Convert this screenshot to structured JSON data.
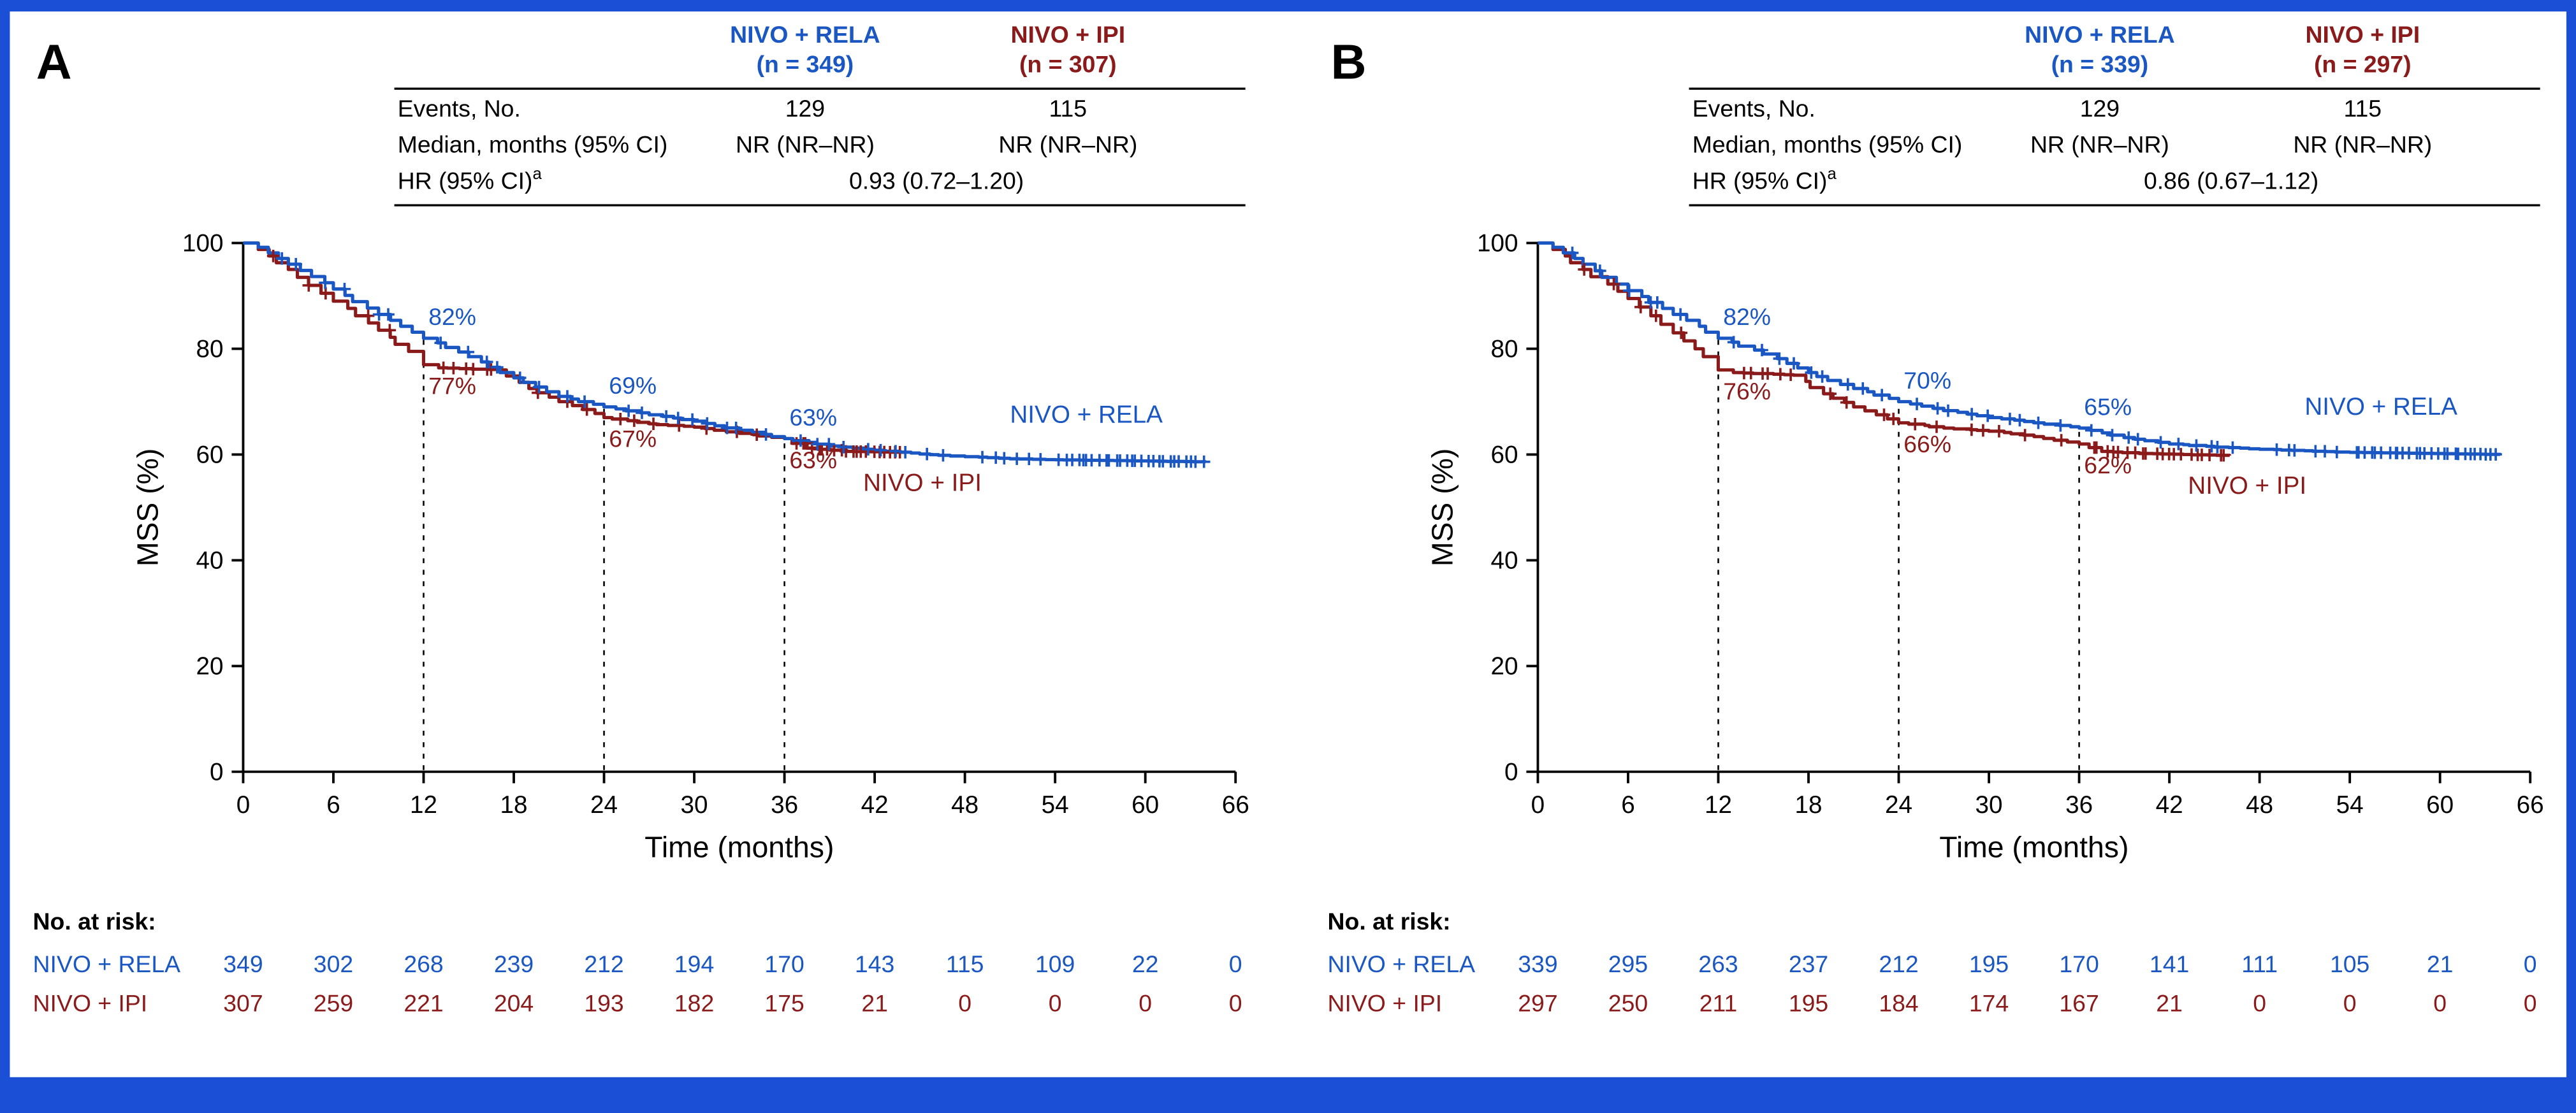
{
  "figure": {
    "frame_color": "#1b4fd6",
    "background": "#ffffff",
    "axis_color": "#000000",
    "no_at_risk_label": "No. at risk:",
    "table_row_labels": {
      "events": "Events, No.",
      "median": "Median, months (95% CI)",
      "hr": "HR (95% CI)",
      "hr_superscript": "a"
    }
  },
  "chart_data": [
    {
      "type": "line",
      "subtype": "kaplan-meier-step",
      "panel_label": "A",
      "xlabel": "Time (months)",
      "ylabel": "MSS (%)",
      "xlim": [
        0,
        66
      ],
      "ylim": [
        0,
        100
      ],
      "xticks": [
        0,
        6,
        12,
        18,
        24,
        30,
        36,
        42,
        48,
        54,
        60,
        66
      ],
      "yticks": [
        0,
        20,
        40,
        60,
        80,
        100
      ],
      "landmark_times": [
        12,
        24,
        36
      ],
      "hr_value": "0.93 (0.72–1.20)",
      "series": [
        {
          "name": "NIVO + RELA",
          "n_label": "(n = 349)",
          "color": "#1a57c2",
          "events": "129",
          "median": "NR (NR–NR)",
          "landmarks": [
            {
              "t": 12,
              "pct": 82,
              "label": "82%"
            },
            {
              "t": 24,
              "pct": 69,
              "label": "69%"
            },
            {
              "t": 36,
              "pct": 63,
              "label": "63%"
            }
          ],
          "anchors": [
            [
              0,
              100
            ],
            [
              1,
              99.2
            ],
            [
              3,
              96
            ],
            [
              6,
              91.3
            ],
            [
              9,
              86.5
            ],
            [
              12,
              82
            ],
            [
              15,
              78.5
            ],
            [
              18,
              74.5
            ],
            [
              21,
              71
            ],
            [
              24,
              69
            ],
            [
              27,
              67.5
            ],
            [
              30,
              66.3
            ],
            [
              33,
              64.6
            ],
            [
              36,
              63
            ],
            [
              39,
              61.6
            ],
            [
              42,
              60.8
            ],
            [
              45,
              60.1
            ],
            [
              48,
              59.6
            ],
            [
              51,
              59.2
            ],
            [
              54,
              59
            ],
            [
              64,
              58.6
            ]
          ],
          "censor_clusters": [
            {
              "from": 1.5,
              "to": 11,
              "count": 6
            },
            {
              "from": 13,
              "to": 23,
              "count": 8
            },
            {
              "from": 25,
              "to": 35,
              "count": 9
            },
            {
              "from": 36.8,
              "to": 47,
              "count": 10
            },
            {
              "from": 48.5,
              "to": 53.5,
              "count": 6
            },
            {
              "from": 54.2,
              "to": 64,
              "count": 27
            }
          ],
          "seed": 11
        },
        {
          "name": "NIVO + IPI",
          "n_label": "(n = 307)",
          "color": "#8b1a1a",
          "events": "115",
          "median": "NR (NR–NR)",
          "landmarks": [
            {
              "t": 12,
              "pct": 77,
              "label": "77%"
            },
            {
              "t": 24,
              "pct": 67,
              "label": "67%"
            },
            {
              "t": 36,
              "pct": 63,
              "label": "63%"
            }
          ],
          "anchors": [
            [
              0,
              100
            ],
            [
              1,
              98.8
            ],
            [
              3,
              95
            ],
            [
              6,
              89
            ],
            [
              9,
              83.5
            ],
            [
              11,
              79.5
            ],
            [
              12,
              77
            ],
            [
              13,
              76.4
            ],
            [
              17,
              76
            ],
            [
              19,
              72.5
            ],
            [
              21,
              70
            ],
            [
              24,
              67
            ],
            [
              27,
              65.8
            ],
            [
              30,
              65.2
            ],
            [
              33,
              64
            ],
            [
              36,
              63
            ],
            [
              37.5,
              61.2
            ],
            [
              40,
              60.6
            ],
            [
              44,
              60.4
            ]
          ],
          "censor_clusters": [
            {
              "from": 2,
              "to": 10.5,
              "count": 5
            },
            {
              "from": 13.3,
              "to": 17,
              "count": 6
            },
            {
              "from": 19,
              "to": 35,
              "count": 10
            },
            {
              "from": 36.6,
              "to": 44,
              "count": 20
            }
          ],
          "seed": 22
        }
      ],
      "at_risk": {
        "times": [
          0,
          6,
          12,
          18,
          24,
          30,
          36,
          42,
          48,
          54,
          60,
          66
        ],
        "rows": [
          {
            "name": "NIVO + RELA",
            "values": [
              349,
              302,
              268,
              239,
              212,
              194,
              170,
              143,
              115,
              109,
              22,
              0
            ]
          },
          {
            "name": "NIVO + IPI",
            "values": [
              307,
              259,
              221,
              204,
              193,
              182,
              175,
              21,
              0,
              0,
              0,
              0
            ]
          }
        ]
      }
    },
    {
      "type": "line",
      "subtype": "kaplan-meier-step",
      "panel_label": "B",
      "xlabel": "Time (months)",
      "ylabel": "MSS (%)",
      "xlim": [
        0,
        66
      ],
      "ylim": [
        0,
        100
      ],
      "xticks": [
        0,
        6,
        12,
        18,
        24,
        30,
        36,
        42,
        48,
        54,
        60,
        66
      ],
      "yticks": [
        0,
        20,
        40,
        60,
        80,
        100
      ],
      "landmark_times": [
        12,
        24,
        36
      ],
      "hr_value": "0.86 (0.67–1.12)",
      "series": [
        {
          "name": "NIVO + RELA",
          "n_label": "(n = 339)",
          "color": "#1a57c2",
          "events": "129",
          "median": "NR (NR–NR)",
          "landmarks": [
            {
              "t": 12,
              "pct": 82,
              "label": "82%"
            },
            {
              "t": 24,
              "pct": 70,
              "label": "70%"
            },
            {
              "t": 36,
              "pct": 65,
              "label": "65%"
            }
          ],
          "anchors": [
            [
              0,
              100
            ],
            [
              1,
              99.2
            ],
            [
              3,
              96
            ],
            [
              6,
              91
            ],
            [
              9,
              86.5
            ],
            [
              12,
              82
            ],
            [
              15,
              79
            ],
            [
              18,
              75.5
            ],
            [
              21,
              72.5
            ],
            [
              24,
              70
            ],
            [
              27,
              68.3
            ],
            [
              30,
              67
            ],
            [
              33,
              66
            ],
            [
              36,
              65
            ],
            [
              39,
              63.2
            ],
            [
              42,
              62
            ],
            [
              45,
              61.4
            ],
            [
              48,
              61
            ],
            [
              51,
              60.7
            ],
            [
              54,
              60.4
            ],
            [
              64,
              60
            ]
          ],
          "censor_clusters": [
            {
              "from": 1.5,
              "to": 11,
              "count": 6
            },
            {
              "from": 13,
              "to": 23,
              "count": 9
            },
            {
              "from": 25,
              "to": 35,
              "count": 9
            },
            {
              "from": 36.8,
              "to": 47,
              "count": 10
            },
            {
              "from": 48.5,
              "to": 53.5,
              "count": 6
            },
            {
              "from": 54.2,
              "to": 64,
              "count": 27
            }
          ],
          "seed": 33
        },
        {
          "name": "NIVO + IPI",
          "n_label": "(n = 297)",
          "color": "#8b1a1a",
          "events": "115",
          "median": "NR (NR–NR)",
          "landmarks": [
            {
              "t": 12,
              "pct": 76,
              "label": "76%"
            },
            {
              "t": 24,
              "pct": 66,
              "label": "66%"
            },
            {
              "t": 36,
              "pct": 62,
              "label": "62%"
            }
          ],
          "anchors": [
            [
              0,
              100
            ],
            [
              1,
              98.8
            ],
            [
              3,
              95
            ],
            [
              6,
              89.5
            ],
            [
              9,
              83
            ],
            [
              11,
              78.5
            ],
            [
              12,
              76
            ],
            [
              13,
              75.5
            ],
            [
              17,
              75
            ],
            [
              19,
              71.5
            ],
            [
              21,
              69
            ],
            [
              24,
              66
            ],
            [
              27,
              65
            ],
            [
              30,
              64.4
            ],
            [
              33,
              63.4
            ],
            [
              36,
              62
            ],
            [
              37.5,
              60.6
            ],
            [
              40,
              60.2
            ],
            [
              46,
              59.8
            ]
          ],
          "censor_clusters": [
            {
              "from": 2,
              "to": 10.5,
              "count": 5
            },
            {
              "from": 13.3,
              "to": 17,
              "count": 6
            },
            {
              "from": 19,
              "to": 35,
              "count": 11
            },
            {
              "from": 36.6,
              "to": 46,
              "count": 20
            }
          ],
          "seed": 44
        }
      ],
      "at_risk": {
        "times": [
          0,
          6,
          12,
          18,
          24,
          30,
          36,
          42,
          48,
          54,
          60,
          66
        ],
        "rows": [
          {
            "name": "NIVO + RELA",
            "values": [
              339,
              295,
              263,
              237,
              212,
              195,
              170,
              141,
              111,
              105,
              21,
              0
            ]
          },
          {
            "name": "NIVO + IPI",
            "values": [
              297,
              250,
              211,
              195,
              184,
              174,
              167,
              21,
              0,
              0,
              0,
              0
            ]
          }
        ]
      }
    }
  ]
}
